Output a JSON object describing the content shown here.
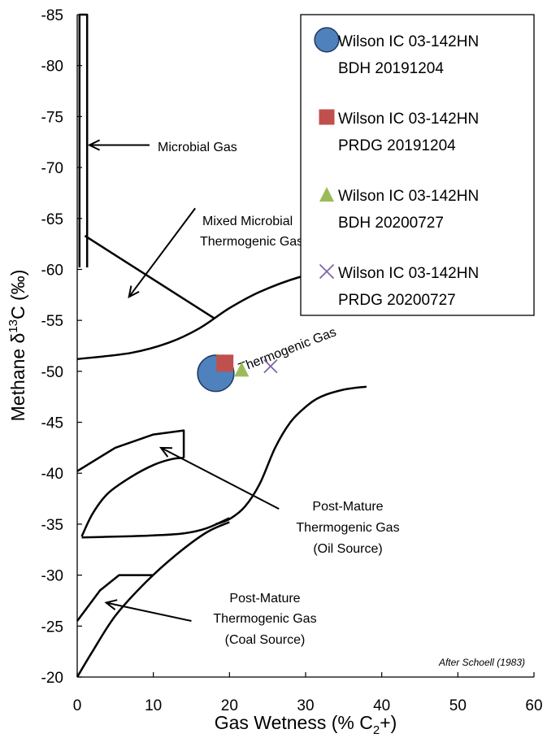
{
  "chart_data": {
    "type": "scatter",
    "xlabel_main": "Gas Wetness (% C",
    "xlabel_sub": "2",
    "xlabel_tail": "+)",
    "ylabel_main": "Methane  δ",
    "ylabel_sup": "13",
    "ylabel_tail": "C (‰)",
    "xlim": [
      0,
      60
    ],
    "ylim": [
      -20,
      -85
    ],
    "y_reversed": true,
    "grid": false,
    "legend_position": "top-right",
    "x_ticks": [
      0,
      10,
      20,
      30,
      40,
      50,
      60
    ],
    "y_ticks": [
      -20,
      -25,
      -30,
      -35,
      -40,
      -45,
      -50,
      -55,
      -60,
      -65,
      -70,
      -75,
      -80,
      -85
    ],
    "series": [
      {
        "name_line1": "Wilson IC 03-142HN",
        "name_line2": "BDH 20191204",
        "marker": "circle",
        "color": "#4f81bd",
        "points": [
          [
            18.2,
            -49.8
          ]
        ]
      },
      {
        "name_line1": "Wilson IC 03-142HN",
        "name_line2": "PRDG 20191204",
        "marker": "square",
        "color": "#c0504d",
        "points": [
          [
            19.4,
            -50.8
          ]
        ]
      },
      {
        "name_line1": "Wilson IC 03-142HN",
        "name_line2": "BDH 20200727",
        "marker": "triangle",
        "color": "#9bbb59",
        "points": [
          [
            21.6,
            -50.2
          ]
        ]
      },
      {
        "name_line1": "Wilson IC 03-142HN",
        "name_line2": "PRDG 20200727",
        "marker": "x",
        "color": "#8064a2",
        "points": [
          [
            25.4,
            -50.5
          ]
        ]
      }
    ],
    "annotations": {
      "microbial": "Microbial Gas",
      "mixed_1": "Mixed Microbial",
      "mixed_2": "Thermogenic Gas",
      "thermogenic": "Thermogenic Gas",
      "pm_oil_1": "Post-Mature",
      "pm_oil_2": "Thermogenic Gas",
      "pm_oil_3": "(Oil Source)",
      "pm_coal_1": "Post-Mature",
      "pm_coal_2": "Thermogenic Gas",
      "pm_coal_3": "(Coal Source)",
      "credit": "After Schoell (1983)"
    },
    "fields": {
      "microbial_box": [
        [
          0.3,
          -60.2
        ],
        [
          0.3,
          -85
        ],
        [
          1.3,
          -85
        ],
        [
          1.3,
          -60.2
        ]
      ],
      "mixed_line": [
        [
          1,
          -63.3
        ],
        [
          18,
          -55.2
        ]
      ],
      "thermogenic_lower": [
        [
          0,
          -51.2
        ],
        [
          7,
          -51.8
        ],
        [
          12,
          -52.8
        ],
        [
          16,
          -54.2
        ],
        [
          20,
          -56.2
        ],
        [
          24,
          -57.8
        ],
        [
          29,
          -59.2
        ],
        [
          34,
          -60
        ]
      ],
      "thermogenic_upper": [
        [
          18.2,
          -35
        ],
        [
          20,
          -35.5
        ],
        [
          22,
          -36.7
        ],
        [
          24,
          -39
        ],
        [
          26,
          -42.5
        ],
        [
          28,
          -45
        ],
        [
          30,
          -46.5
        ],
        [
          32,
          -47.5
        ],
        [
          35,
          -48.2
        ],
        [
          38,
          -48.5
        ]
      ],
      "oil_box": [
        [
          0,
          -40.2
        ],
        [
          5,
          -42.5
        ],
        [
          10,
          -43.8
        ],
        [
          14,
          -44.2
        ],
        [
          14,
          -41.5
        ]
      ],
      "oil_curve": [
        [
          0.6,
          -33.8
        ],
        [
          2,
          -36
        ],
        [
          4,
          -38
        ],
        [
          7,
          -39.6
        ],
        [
          10,
          -40.8
        ],
        [
          12.5,
          -41.4
        ],
        [
          14,
          -41.5
        ]
      ],
      "oil_bottom": [
        [
          0.6,
          -33.7
        ],
        [
          6,
          -33.8
        ],
        [
          10,
          -33.9
        ],
        [
          14,
          -34.1
        ],
        [
          17,
          -34.6
        ],
        [
          20,
          -35.6
        ]
      ],
      "coal_curve": [
        [
          0,
          -20
        ],
        [
          2,
          -22.5
        ],
        [
          5,
          -26
        ],
        [
          9,
          -29.3
        ],
        [
          13,
          -32
        ],
        [
          17,
          -34.2
        ],
        [
          20,
          -35.2
        ]
      ],
      "coal_upper": [
        [
          0,
          -25.5
        ],
        [
          3,
          -28.5
        ],
        [
          5.5,
          -30
        ],
        [
          10,
          -30
        ]
      ],
      "arrows": [
        {
          "from": [
            9.5,
            -72.2
          ],
          "to": [
            1.6,
            -72.2
          ]
        },
        {
          "from": [
            15.5,
            -66
          ],
          "to": [
            6.8,
            -57.3
          ]
        },
        {
          "from": [
            26.5,
            -36.5
          ],
          "to": [
            11,
            -42.5
          ]
        },
        {
          "from": [
            15,
            -25.5
          ],
          "to": [
            3.8,
            -27.3
          ]
        }
      ]
    }
  }
}
